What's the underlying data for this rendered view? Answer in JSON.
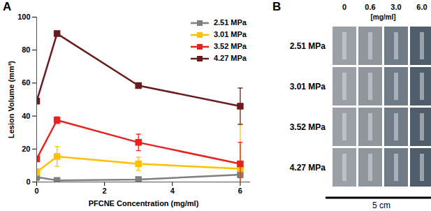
{
  "chart_data": {
    "type": "line",
    "panel_label": "A",
    "x_label": "PFCNE Concentration (mg/ml)",
    "y_label": "Lesion Volume (mm³)",
    "x": [
      0,
      0.6,
      3,
      6
    ],
    "series": [
      {
        "name": "2.51 MPa",
        "color": "#7f7f7f",
        "values": [
          3,
          1,
          1.5,
          4.5
        ],
        "errors": [
          2,
          1,
          1.5,
          2
        ]
      },
      {
        "name": "3.01 MPa",
        "color": "#ffc000",
        "values": [
          6,
          15.5,
          11,
          8
        ],
        "errors": [
          2,
          6,
          4,
          27
        ]
      },
      {
        "name": "3.52 MPa",
        "color": "#e8221f",
        "values": [
          14,
          37.5,
          24,
          11
        ],
        "errors": [
          0,
          2,
          5,
          13
        ]
      },
      {
        "name": "4.27 MPa",
        "color": "#6b1b1b",
        "values": [
          49,
          90,
          58.5,
          46
        ],
        "errors": [
          0,
          1.5,
          0,
          11
        ]
      }
    ],
    "xlim": [
      0,
      6.3
    ],
    "xticks": [
      0,
      2,
      4,
      6
    ],
    "ylim": [
      0,
      100
    ],
    "yticks": [
      0,
      20,
      40,
      60,
      80,
      100
    ],
    "grid": false,
    "legend": "upper right",
    "marker": "square",
    "line_style": "solid"
  },
  "image_grid": {
    "panel_label": "B",
    "column_labels": [
      "0",
      "0.6",
      "3.0",
      "6.0"
    ],
    "column_unit": "[mg/ml]",
    "row_labels": [
      "2.51 MPa",
      "3.01 MPa",
      "3.52 MPa",
      "4.27 MPa"
    ],
    "scale_bar": "5 cm"
  }
}
